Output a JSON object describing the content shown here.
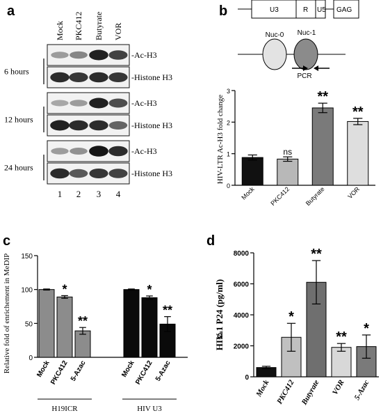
{
  "panel_a": {
    "letter": "a",
    "lanes": [
      "Mock",
      "PKC412",
      "Butyrate",
      "VOR"
    ],
    "lane_numbers": [
      "1",
      "2",
      "3",
      "4"
    ],
    "time_points": [
      {
        "label": "6  hours",
        "rows": [
          {
            "label": "-Ac-H3",
            "bands": [
              0.35,
              0.45,
              0.9,
              0.75
            ]
          },
          {
            "label": "-Histone H3",
            "bands": [
              0.85,
              0.8,
              0.85,
              0.8
            ]
          }
        ]
      },
      {
        "label": "12  hours",
        "rows": [
          {
            "label": "-Ac-H3",
            "bands": [
              0.3,
              0.35,
              0.9,
              0.7
            ]
          },
          {
            "label": "-Histone H3",
            "bands": [
              0.9,
              0.85,
              0.85,
              0.6
            ]
          }
        ]
      },
      {
        "label": "24  hours",
        "rows": [
          {
            "label": "-Ac-H3",
            "bands": [
              0.35,
              0.4,
              0.95,
              0.85
            ]
          },
          {
            "label": "-Histone H3",
            "bands": [
              0.85,
              0.65,
              0.8,
              0.75
            ]
          }
        ]
      }
    ]
  },
  "panel_b_diagram": {
    "letter": "b",
    "boxes": [
      "U3",
      "R",
      "U5",
      "GAG"
    ],
    "nucleosomes": [
      "Nuc-0",
      "Nuc-1"
    ],
    "pcr_label": "PCR"
  },
  "chart_data": [
    {
      "id": "panel_b_chart",
      "type": "bar",
      "categories": [
        "Mock",
        "PKC412",
        "Butyrate",
        "VOR"
      ],
      "values": [
        0.88,
        0.83,
        2.45,
        2.02
      ],
      "errors": [
        0.08,
        0.07,
        0.15,
        0.1
      ],
      "significance": [
        "",
        "ns",
        "**",
        "**"
      ],
      "colors": [
        "#111111",
        "#b8b8b8",
        "#7a7a7a",
        "#dedede"
      ],
      "ylabel": "HIV-LTR Ac-H3 fold change",
      "ylim": [
        0,
        3
      ],
      "yticks": [
        0,
        1,
        2,
        3
      ]
    },
    {
      "id": "panel_c_chart",
      "type": "bar",
      "letter": "c",
      "groups": [
        {
          "label": "H19ICR",
          "categories": [
            "Mock",
            "PKC412",
            "5-Azac"
          ],
          "values": [
            100,
            89,
            39
          ],
          "errors": [
            0.8,
            2,
            5
          ],
          "significance": [
            "",
            "*",
            "**"
          ],
          "color": "#8c8c8c"
        },
        {
          "label": "HIV U3",
          "categories": [
            "Mock",
            "PKC412",
            "5-Azac"
          ],
          "values": [
            100,
            88,
            49
          ],
          "errors": [
            0.8,
            2.5,
            11
          ],
          "significance": [
            "",
            "*",
            "**"
          ],
          "color": "#0a0a0a"
        }
      ],
      "ylabel": "Relative fold of enrichement in MeDIP",
      "ylim": [
        0,
        150
      ],
      "yticks": [
        0,
        50,
        100,
        150
      ]
    },
    {
      "id": "panel_d_chart",
      "type": "bar",
      "letter": "d",
      "categories": [
        "Mock",
        "PKC412",
        "Butyrate",
        "VOR",
        "5-Azac"
      ],
      "values": [
        600,
        2550,
        6100,
        1900,
        1950
      ],
      "errors": [
        80,
        900,
        1400,
        250,
        750
      ],
      "significance": [
        "",
        "*",
        "**",
        "**",
        "*"
      ],
      "colors": [
        "#111111",
        "#c0c0c0",
        "#6f6f6f",
        "#d8d8d8",
        "#7a7a7a"
      ],
      "ylabel": "HIV-1 P24 (pg/ml)",
      "ylim": [
        0,
        8000
      ],
      "yticks": [
        0,
        2000,
        4000,
        6000,
        8000
      ],
      "stray_label": "d"
    }
  ]
}
